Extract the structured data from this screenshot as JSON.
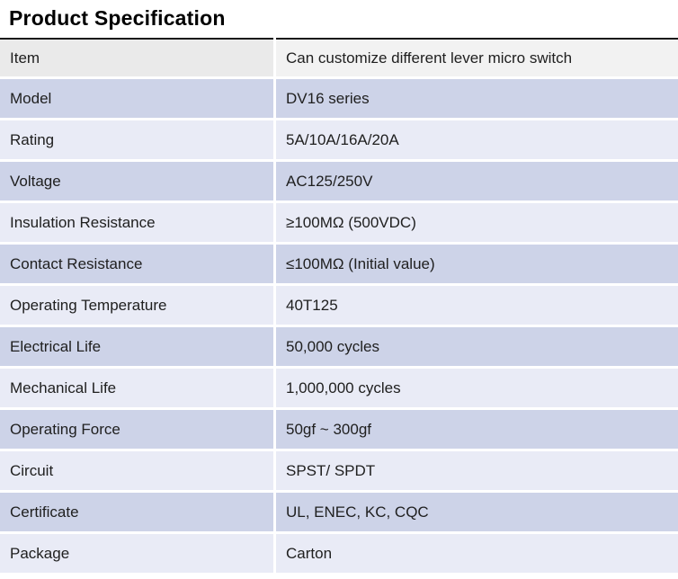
{
  "title": "Product Specification",
  "table": {
    "rows": [
      {
        "label": "Item",
        "value": "Can customize different lever micro switch",
        "style": "header"
      },
      {
        "label": "Model",
        "value": "DV16 series",
        "style": "dark"
      },
      {
        "label": "Rating",
        "value": "5A/10A/16A/20A",
        "style": "light"
      },
      {
        "label": "Voltage",
        "value": "AC125/250V",
        "style": "dark"
      },
      {
        "label": "Insulation Resistance",
        "value": "≥100MΩ (500VDC)",
        "style": "light"
      },
      {
        "label": "Contact Resistance",
        "value": "≤100MΩ (Initial value)",
        "style": "dark"
      },
      {
        "label": "Operating Temperature",
        "value": "40T125",
        "style": "light"
      },
      {
        "label": "Electrical Life",
        "value": "50,000 cycles",
        "style": "dark"
      },
      {
        "label": "Mechanical Life",
        "value": "1,000,000 cycles",
        "style": "light"
      },
      {
        "label": "Operating Force",
        "value": "50gf ~ 300gf",
        "style": "dark"
      },
      {
        "label": "Circuit",
        "value": "SPST/ SPDT",
        "style": "light"
      },
      {
        "label": "Certificate",
        "value": "UL, ENEC, KC, CQC",
        "style": "dark"
      },
      {
        "label": "Package",
        "value": "Carton",
        "style": "light"
      }
    ]
  },
  "colors": {
    "row-dark": "#cdd3e8",
    "row-light": "#e9ebf6",
    "header-left": "#eaeaea",
    "header-right": "#f2f2f2",
    "line": "#1a1a1a",
    "text": "#202020",
    "bg": "#ffffff"
  }
}
